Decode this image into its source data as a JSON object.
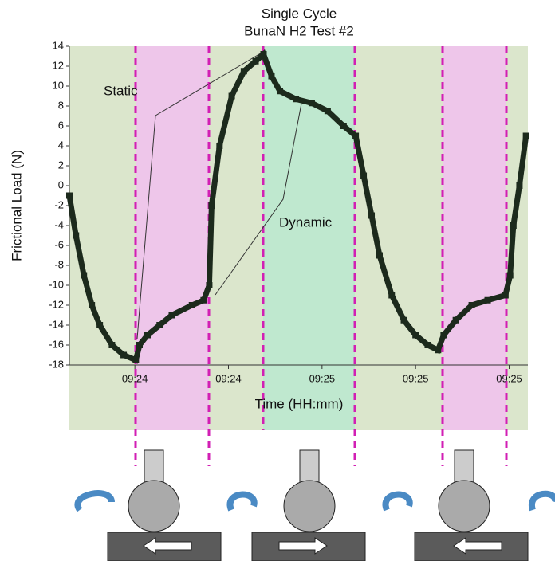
{
  "chart_data": {
    "type": "scatter",
    "title": "Single Cycle",
    "subtitle": "BunaN H2 Test #2",
    "x_label": "Time (HH:mm)",
    "y_label": "Frictional Load (N)",
    "annotations": [
      "Static",
      "Dynamic"
    ],
    "color": "#1c2a1c",
    "xlim": [
      6,
      104
    ],
    "ylim": [
      -18,
      14
    ],
    "xticks": [
      {
        "value": 20,
        "label": "09:24"
      },
      {
        "value": 40,
        "label": "09:24"
      },
      {
        "value": 60,
        "label": "09:25"
      },
      {
        "value": 80,
        "label": "09:25"
      },
      {
        "value": 100,
        "label": "09:25"
      }
    ],
    "yticks": [
      14,
      12,
      10,
      8,
      6,
      4,
      2,
      0,
      -2,
      -4,
      -6,
      -8,
      -10,
      -12,
      -14,
      -16,
      -18
    ],
    "x": [
      6.0,
      7.4,
      9.1,
      10.8,
      12.5,
      15.1,
      17.6,
      20.2,
      21.0,
      22.7,
      25.3,
      27.9,
      32.2,
      34.7,
      35.9,
      36.4,
      38.1,
      40.7,
      43.3,
      45.8,
      47.5,
      49.2,
      51.0,
      54.4,
      57.8,
      61.2,
      64.6,
      67.2,
      68.9,
      70.6,
      72.3,
      74.9,
      77.5,
      80.0,
      82.6,
      84.8,
      86.0,
      88.6,
      92.0,
      95.4,
      99.2,
      100.2,
      100.9,
      102.2,
      103.6
    ],
    "values": [
      -1,
      -5,
      -9,
      -12,
      -14,
      -16,
      -17,
      -17.5,
      -16,
      -15,
      -14,
      -13,
      -12,
      -11.5,
      -10,
      -2,
      4,
      9,
      11.5,
      12.5,
      13.2,
      11,
      9.5,
      8.7,
      8.3,
      7.5,
      6,
      5,
      1,
      -3,
      -7,
      -11,
      -13.5,
      -15,
      -16,
      -16.5,
      -15,
      -13.5,
      -12,
      -11.5,
      -11,
      -9,
      -4,
      0,
      5
    ]
  }
}
